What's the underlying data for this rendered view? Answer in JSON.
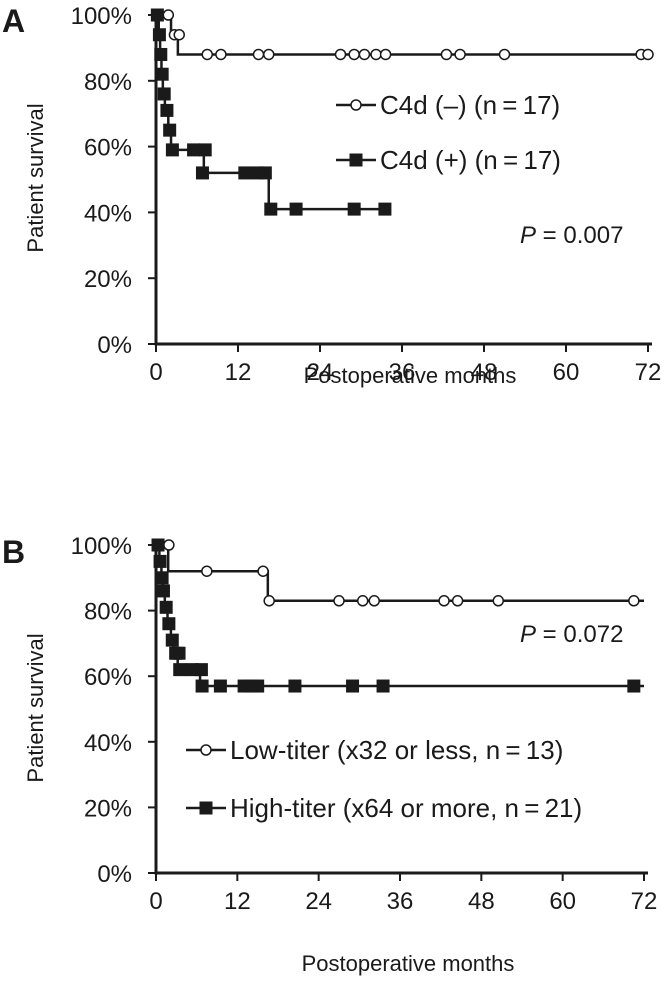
{
  "chart_data": [
    {
      "panel": "A",
      "type": "line",
      "xlabel": "Postoperative months",
      "ylabel": "Patient survival",
      "x_ticks": [
        "0",
        "12",
        "24",
        "36",
        "48",
        "60",
        "72"
      ],
      "y_ticks": [
        "0%",
        "20%",
        "40%",
        "60%",
        "80%",
        "100%"
      ],
      "xlim": [
        0,
        72
      ],
      "ylim": [
        0,
        100
      ],
      "legend_placement": "center-right",
      "annotation": {
        "label": "P",
        "value": " = 0.007"
      },
      "series": [
        {
          "name": "C4d (–) (n = 17)",
          "marker": "open-circle",
          "steps": [
            [
              0,
              100
            ],
            [
              2.2,
              94
            ],
            [
              3.2,
              88
            ],
            [
              72,
              88
            ]
          ],
          "censored": [
            [
              1.8,
              100
            ],
            [
              2.7,
              94
            ],
            [
              3.4,
              94
            ],
            [
              7.5,
              88
            ],
            [
              9.5,
              88
            ],
            [
              15,
              88
            ],
            [
              16.5,
              88
            ],
            [
              27,
              88
            ],
            [
              29,
              88
            ],
            [
              30.5,
              88
            ],
            [
              32.2,
              88
            ],
            [
              33.6,
              88
            ],
            [
              42.5,
              88
            ],
            [
              44.5,
              88
            ],
            [
              51,
              88
            ],
            [
              71,
              88
            ],
            [
              72,
              88
            ]
          ]
        },
        {
          "name": "C4d (+) (n = 17)",
          "marker": "filled-square",
          "steps": [
            [
              0,
              100
            ],
            [
              0.4,
              94
            ],
            [
              0.6,
              88
            ],
            [
              0.8,
              82
            ],
            [
              1,
              76
            ],
            [
              1.3,
              71
            ],
            [
              1.8,
              65
            ],
            [
              2.2,
              59
            ],
            [
              7,
              52
            ],
            [
              16.5,
              41
            ],
            [
              33.5,
              41
            ]
          ],
          "censored": [
            [
              0.2,
              100
            ],
            [
              0.5,
              94
            ],
            [
              0.7,
              88
            ],
            [
              0.9,
              82
            ],
            [
              1.2,
              76
            ],
            [
              1.6,
              71
            ],
            [
              2,
              65
            ],
            [
              2.4,
              59
            ],
            [
              5.5,
              59
            ],
            [
              7.2,
              59
            ],
            [
              6.8,
              52
            ],
            [
              13,
              52
            ],
            [
              14.8,
              52
            ],
            [
              16,
              52
            ],
            [
              16.8,
              41
            ],
            [
              20.5,
              41
            ],
            [
              29,
              41
            ],
            [
              33.5,
              41
            ]
          ]
        }
      ]
    },
    {
      "panel": "B",
      "type": "line",
      "xlabel": "Postoperative months",
      "ylabel": "Patient survival",
      "x_ticks": [
        "0",
        "12",
        "24",
        "36",
        "48",
        "60",
        "72"
      ],
      "y_ticks": [
        "0%",
        "20%",
        "40%",
        "60%",
        "80%",
        "100%"
      ],
      "xlim": [
        0,
        72
      ],
      "ylim": [
        0,
        100
      ],
      "legend_placement": "bottom-center",
      "annotation": {
        "label": "P",
        "value": " = 0.072"
      },
      "series": [
        {
          "name": "Low-titer (x32 or less, n = 13)",
          "marker": "open-circle",
          "steps": [
            [
              0,
              100
            ],
            [
              1.8,
              92
            ],
            [
              16.5,
              83
            ],
            [
              72,
              83
            ]
          ],
          "censored": [
            [
              1.9,
              100
            ],
            [
              7.5,
              92
            ],
            [
              15.8,
              92
            ],
            [
              16.7,
              83
            ],
            [
              27,
              83
            ],
            [
              30.5,
              83
            ],
            [
              32.2,
              83
            ],
            [
              42.5,
              83
            ],
            [
              44.5,
              83
            ],
            [
              50.5,
              83
            ],
            [
              70.5,
              83
            ]
          ]
        },
        {
          "name": "High-titer (x64 or more, n = 21)",
          "marker": "filled-square",
          "steps": [
            [
              0,
              100
            ],
            [
              0.5,
              95
            ],
            [
              0.8,
              90
            ],
            [
              1,
              86
            ],
            [
              1.3,
              81
            ],
            [
              1.7,
              76
            ],
            [
              2.2,
              71
            ],
            [
              2.6,
              67
            ],
            [
              3.2,
              62
            ],
            [
              6.5,
              57
            ],
            [
              72,
              57
            ]
          ],
          "censored": [
            [
              0.3,
              100
            ],
            [
              0.6,
              95
            ],
            [
              0.9,
              90
            ],
            [
              1.1,
              86
            ],
            [
              1.5,
              81
            ],
            [
              1.9,
              76
            ],
            [
              2.4,
              71
            ],
            [
              2.9,
              67
            ],
            [
              3.4,
              67
            ],
            [
              3.5,
              62
            ],
            [
              5.3,
              62
            ],
            [
              6.7,
              62
            ],
            [
              6.8,
              57
            ],
            [
              9.5,
              57
            ],
            [
              13,
              57
            ],
            [
              14,
              57
            ],
            [
              15,
              57
            ],
            [
              20.5,
              57
            ],
            [
              29,
              57
            ],
            [
              33.5,
              57
            ],
            [
              70.5,
              57
            ]
          ]
        }
      ]
    }
  ]
}
